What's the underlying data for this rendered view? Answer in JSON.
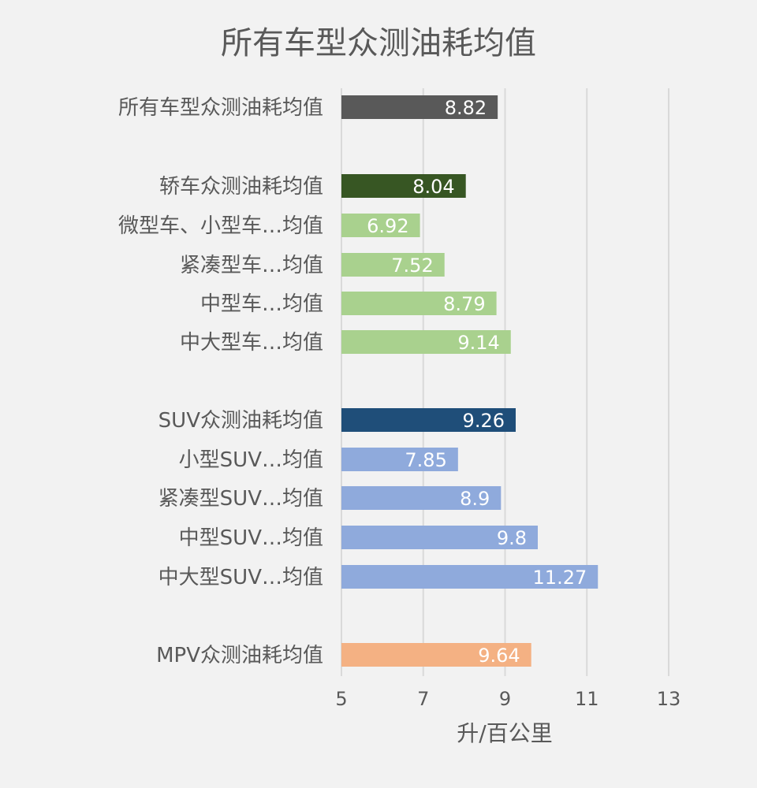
{
  "chart_data": {
    "type": "bar",
    "orientation": "horizontal",
    "title": "所有车型众测油耗均值",
    "xlabel": "升/百公里",
    "xlim": [
      5,
      13
    ],
    "xticks": [
      5,
      7,
      9,
      11,
      13
    ],
    "grid": true,
    "categories": [
      "所有车型众测油耗均值",
      "轿车众测油耗均值",
      "微型车、小型车…均值",
      "紧凑型车…均值",
      "中型车…均值",
      "中大型车…均值",
      "SUV众测油耗均值",
      "小型SUV…均值",
      "紧凑型SUV…均值",
      "中型SUV…均值",
      "中大型SUV…均值",
      "MPV众测油耗均值"
    ],
    "values": [
      8.82,
      8.04,
      6.92,
      7.52,
      8.79,
      9.14,
      9.26,
      7.85,
      8.9,
      9.8,
      11.27,
      9.64
    ],
    "value_labels": [
      "8.82",
      "8.04",
      "6.92",
      "7.52",
      "8.79",
      "9.14",
      "9.26",
      "7.85",
      "8.9",
      "9.8",
      "11.27",
      "9.64"
    ],
    "colors": [
      "#595959",
      "#375623",
      "#a9d18e",
      "#a9d18e",
      "#a9d18e",
      "#a9d18e",
      "#1f4e79",
      "#8faadc",
      "#8faadc",
      "#8faadc",
      "#8faadc",
      "#f4b183"
    ]
  }
}
